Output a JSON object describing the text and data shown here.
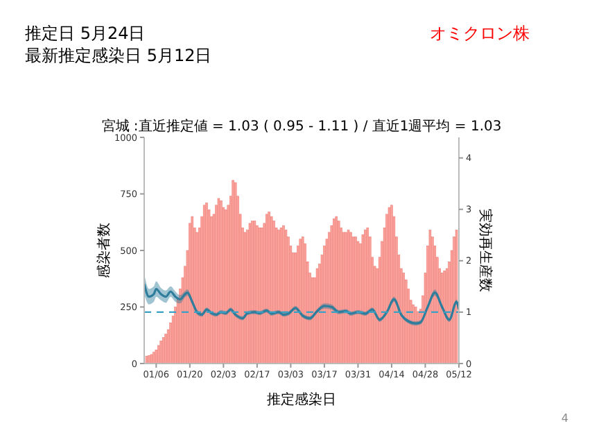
{
  "chart_data": {
    "type": "bar",
    "title": "宮城 :直近推定値 = 1.03 ( 0.95 - 1.11 ) / 直近1週平均 = 1.03",
    "xlabel": "推定感染日",
    "ylabel": "感染者数",
    "y2label": "実効再生産数",
    "annotations": [
      "推定日  5月24日",
      "最新推定感染日  5月12日",
      "オミクロン株",
      "4"
    ],
    "x": [
      "--01-02",
      "--01-03",
      "--01-04",
      "--01-05",
      "--01-06",
      "--01-07",
      "--01-08",
      "--01-09",
      "--01-10",
      "--01-11",
      "--01-12",
      "--01-13",
      "--01-14",
      "--01-15",
      "--01-16",
      "--01-17",
      "--01-18",
      "--01-19",
      "--01-20",
      "--01-21",
      "--01-22",
      "--01-23",
      "--01-24",
      "--01-25",
      "--01-26",
      "--01-27",
      "--01-28",
      "--01-29",
      "--01-30",
      "--01-31",
      "--02-01",
      "--02-02",
      "--02-03",
      "--02-04",
      "--02-05",
      "--02-06",
      "--02-07",
      "--02-08",
      "--02-09",
      "--02-10",
      "--02-11",
      "--02-12",
      "--02-13",
      "--02-14",
      "--02-15",
      "--02-16",
      "--02-17",
      "--02-18",
      "--02-19",
      "--02-20",
      "--02-21",
      "--02-22",
      "--02-23",
      "--02-24",
      "--02-25",
      "--02-26",
      "--02-27",
      "--02-28",
      "--03-01",
      "--03-02",
      "--03-03",
      "--03-04",
      "--03-05",
      "--03-06",
      "--03-07",
      "--03-08",
      "--03-09",
      "--03-10",
      "--03-11",
      "--03-12",
      "--03-13",
      "--03-14",
      "--03-15",
      "--03-16",
      "--03-17",
      "--03-18",
      "--03-19",
      "--03-20",
      "--03-21",
      "--03-22",
      "--03-23",
      "--03-24",
      "--03-25",
      "--03-26",
      "--03-27",
      "--03-28",
      "--03-29",
      "--03-30",
      "--03-31",
      "--04-01",
      "--04-02",
      "--04-03",
      "--04-04",
      "--04-05",
      "--04-06",
      "--04-07",
      "--04-08",
      "--04-09",
      "--04-10",
      "--04-11",
      "--04-12",
      "--04-13",
      "--04-14",
      "--04-15",
      "--04-16",
      "--04-17",
      "--04-18",
      "--04-19",
      "--04-20",
      "--04-21",
      "--04-22",
      "--04-23",
      "--04-24",
      "--04-25",
      "--04-26",
      "--04-27",
      "--04-28",
      "--04-29",
      "--04-30",
      "--05-01",
      "--05-02",
      "--05-03",
      "--05-04",
      "--05-05",
      "--05-06",
      "--05-07",
      "--05-08",
      "--05-09",
      "--05-10",
      "--05-11"
    ],
    "series": [
      {
        "color": "#f9a19b",
        "values": [
          32,
          35,
          40,
          50,
          60,
          80,
          100,
          115,
          130,
          150,
          180,
          210,
          250,
          290,
          330,
          380,
          430,
          500,
          620,
          650,
          600,
          580,
          600,
          650,
          700,
          710,
          680,
          650,
          660,
          700,
          730,
          720,
          690,
          680,
          700,
          740,
          810,
          800,
          740,
          660,
          600,
          580,
          590,
          620,
          630,
          630,
          610,
          600,
          600,
          620,
          660,
          670,
          650,
          630,
          600,
          590,
          600,
          610,
          590,
          560,
          520,
          490,
          490,
          520,
          550,
          560,
          530,
          450,
          400,
          380,
          380,
          420,
          440,
          480,
          520,
          550,
          580,
          610,
          640,
          650,
          630,
          600,
          580,
          580,
          590,
          580,
          560,
          560,
          540,
          530,
          570,
          590,
          600,
          560,
          470,
          430,
          420,
          470,
          540,
          600,
          660,
          690,
          700,
          650,
          560,
          480,
          420,
          400,
          370,
          330,
          280,
          260,
          250,
          230,
          240,
          300,
          400,
          520,
          590,
          560,
          520,
          470,
          420,
          400,
          410,
          420,
          450,
          500,
          560,
          590
        ]
      },
      {
        "type": "line",
        "axis": "y2",
        "color": "#2e7d9c",
        "x": [
          "--01-01",
          "--01-03",
          "--01-05",
          "--01-06",
          "--01-08",
          "--01-10",
          "--01-12",
          "--01-14",
          "--01-16",
          "--01-18",
          "--01-19",
          "--01-21",
          "--01-23",
          "--01-25",
          "--01-27",
          "--01-29",
          "--01-31",
          "--02-02",
          "--02-04",
          "--02-06",
          "--02-08",
          "--02-11",
          "--02-13",
          "--02-16",
          "--02-18",
          "--02-21",
          "--02-23",
          "--02-26",
          "--02-28",
          "--03-02",
          "--03-05",
          "--03-08",
          "--03-11",
          "--03-14",
          "--03-17",
          "--03-20",
          "--03-23",
          "--03-26",
          "--03-28",
          "--03-31",
          "--04-03",
          "--04-06",
          "--04-09",
          "--04-12",
          "--04-15",
          "--04-18",
          "--04-21",
          "--04-24",
          "--04-26",
          "--04-29",
          "--05-02",
          "--05-05",
          "--05-08",
          "--05-11",
          "--05-12"
        ],
        "values": [
          1.55,
          1.3,
          1.35,
          1.45,
          1.35,
          1.3,
          1.4,
          1.3,
          1.25,
          1.35,
          1.38,
          1.2,
          1.0,
          0.95,
          1.05,
          0.98,
          0.95,
          1.0,
          0.98,
          1.05,
          0.95,
          0.88,
          0.98,
          1.0,
          0.98,
          1.03,
          0.97,
          1.0,
          0.95,
          0.97,
          1.08,
          0.93,
          0.88,
          1.02,
          1.12,
          1.1,
          1.0,
          1.02,
          0.97,
          1.0,
          0.97,
          1.05,
          0.85,
          1.0,
          1.25,
          0.95,
          0.82,
          0.78,
          0.8,
          1.1,
          1.38,
          1.1,
          0.85,
          1.2,
          1.05
        ],
        "lower": [
          1.35,
          1.15,
          1.2,
          1.3,
          1.23,
          1.18,
          1.3,
          1.2,
          1.17,
          1.29,
          1.32,
          1.15,
          0.95,
          0.91,
          1.01,
          0.94,
          0.91,
          0.96,
          0.94,
          1.01,
          0.91,
          0.84,
          0.94,
          0.96,
          0.94,
          0.99,
          0.93,
          0.96,
          0.91,
          0.93,
          1.04,
          0.89,
          0.84,
          0.98,
          1.07,
          1.05,
          0.96,
          0.98,
          0.93,
          0.96,
          0.93,
          1.01,
          0.81,
          0.96,
          1.2,
          0.91,
          0.78,
          0.74,
          0.76,
          1.05,
          1.32,
          1.05,
          0.81,
          1.15,
          1.0
        ],
        "upper": [
          1.75,
          1.45,
          1.5,
          1.6,
          1.47,
          1.42,
          1.5,
          1.4,
          1.33,
          1.41,
          1.44,
          1.25,
          1.05,
          0.99,
          1.09,
          1.02,
          0.99,
          1.04,
          1.02,
          1.09,
          0.99,
          0.92,
          1.02,
          1.04,
          1.02,
          1.07,
          1.01,
          1.04,
          0.99,
          1.01,
          1.12,
          0.97,
          0.92,
          1.06,
          1.17,
          1.15,
          1.04,
          1.06,
          1.01,
          1.04,
          1.01,
          1.09,
          0.89,
          1.04,
          1.3,
          0.99,
          0.86,
          0.82,
          0.84,
          1.15,
          1.44,
          1.15,
          0.89,
          1.25,
          1.1
        ]
      }
    ],
    "xlim": [
      "--01-01",
      "--05-12"
    ],
    "xticks": [
      {
        "value": "--01-06",
        "label": "01/06"
      },
      {
        "value": "--01-20",
        "label": "01/20"
      },
      {
        "value": "--02-03",
        "label": "02/03"
      },
      {
        "value": "--02-17",
        "label": "02/17"
      },
      {
        "value": "--03-03",
        "label": "03/03"
      },
      {
        "value": "--03-17",
        "label": "03/17"
      },
      {
        "value": "--03-31",
        "label": "03/31"
      },
      {
        "value": "--04-14",
        "label": "04/14"
      },
      {
        "value": "--04-28",
        "label": "04/28"
      },
      {
        "value": "--05-12",
        "label": "05/12"
      }
    ],
    "ylim": [
      0,
      1000
    ],
    "yticks": [
      0,
      250,
      500,
      750,
      1000
    ],
    "y2lim": [
      0,
      4.4
    ],
    "y2ticks": [
      0,
      1,
      2,
      3,
      4
    ],
    "ref_lines": [
      {
        "axis": "y2",
        "value": 1,
        "color": "#3aa0c4",
        "line_style": "dashed"
      }
    ]
  }
}
